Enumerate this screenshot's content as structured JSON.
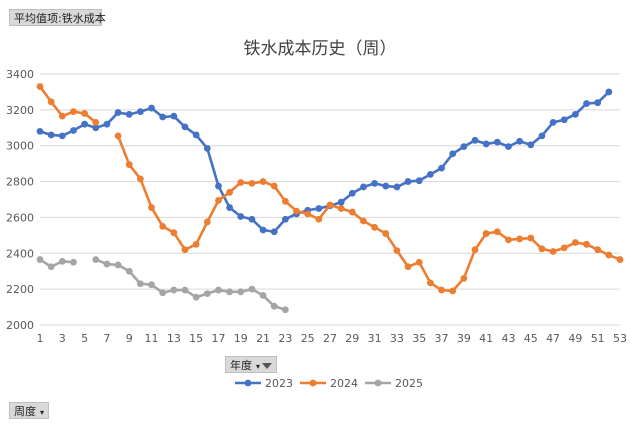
{
  "pivot": {
    "value_field": "平均值项:铁水成本",
    "legend_field": "年度",
    "axis_field": "周度"
  },
  "chart_data": {
    "type": "line",
    "title": "铁水成本历史（周）",
    "xlabel": "",
    "ylabel": "",
    "ylim": [
      2000,
      3400
    ],
    "yticks": [
      2000,
      2200,
      2400,
      2600,
      2800,
      3000,
      3200,
      3400
    ],
    "xticks": [
      1,
      3,
      5,
      7,
      9,
      11,
      13,
      15,
      17,
      19,
      21,
      23,
      25,
      27,
      29,
      31,
      33,
      35,
      37,
      39,
      41,
      43,
      45,
      47,
      49,
      51,
      53
    ],
    "x": [
      1,
      2,
      3,
      4,
      5,
      6,
      7,
      8,
      9,
      10,
      11,
      12,
      13,
      14,
      15,
      16,
      17,
      18,
      19,
      20,
      21,
      22,
      23,
      24,
      25,
      26,
      27,
      28,
      29,
      30,
      31,
      32,
      33,
      34,
      35,
      36,
      37,
      38,
      39,
      40,
      41,
      42,
      43,
      44,
      45,
      46,
      47,
      48,
      49,
      50,
      51,
      52,
      53
    ],
    "grid": true,
    "legend_position": "bottom",
    "series": [
      {
        "name": "2023",
        "color": "#4472c4",
        "values": [
          3080,
          3060,
          3055,
          3085,
          3120,
          3100,
          3120,
          3185,
          3175,
          3190,
          3210,
          3160,
          3165,
          3105,
          3060,
          2985,
          2775,
          2655,
          2605,
          2590,
          2530,
          2520,
          2590,
          2620,
          2640,
          2650,
          2665,
          2685,
          2735,
          2770,
          2790,
          2775,
          2770,
          2800,
          2805,
          2840,
          2875,
          2955,
          2995,
          3030,
          3010,
          3020,
          2995,
          3025,
          3005,
          3055,
          3130,
          3145,
          3175,
          3235,
          3240,
          3300,
          null
        ]
      },
      {
        "name": "2024",
        "color": "#ed7d31",
        "values": [
          3330,
          3245,
          3165,
          3190,
          3180,
          3130,
          null,
          3055,
          2895,
          2815,
          2655,
          2550,
          2515,
          2420,
          2450,
          2575,
          2695,
          2740,
          2795,
          2790,
          2800,
          2775,
          2690,
          2635,
          2620,
          2590,
          2670,
          2650,
          2630,
          2580,
          2545,
          2510,
          2415,
          2325,
          2350,
          2235,
          2195,
          2190,
          2260,
          2420,
          2510,
          2520,
          2475,
          2480,
          2485,
          2425,
          2410,
          2430,
          2460,
          2450,
          2420,
          2390,
          2365
        ]
      },
      {
        "name": "2025",
        "color": "#a5a5a5",
        "values": [
          2365,
          2325,
          2355,
          2350,
          null,
          2365,
          2340,
          2335,
          2300,
          2230,
          2225,
          2180,
          2195,
          2195,
          2155,
          2175,
          2195,
          2185,
          2185,
          2200,
          2165,
          2105,
          2085,
          null,
          null,
          null,
          null,
          null,
          null,
          null,
          null,
          null,
          null,
          null,
          null,
          null,
          null,
          null,
          null,
          null,
          null,
          null,
          null,
          null,
          null,
          null,
          null,
          null,
          null,
          null,
          null,
          null,
          null
        ]
      }
    ]
  }
}
